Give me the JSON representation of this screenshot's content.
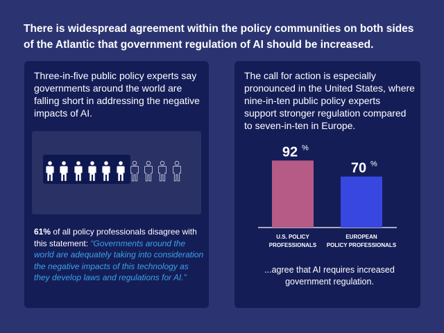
{
  "headline": "There is widespread agreement within the policy communities on both sides of the Atlantic that government regulation of AI should be increased.",
  "left_panel": {
    "intro": "Three-in-five public policy experts say governments around the world are falling short in addressing the negative impacts of AI.",
    "people": {
      "total": 10,
      "highlighted": 6
    },
    "stat_bold": "61%",
    "stat_text": " of all policy professionals disagree with this statement: ",
    "quote": "“Governments around the world are adequately taking into consideration the negative impacts of this technology as they develop laws and regulations for AI.”"
  },
  "right_panel": {
    "intro": "The call for action is especially pronounced in the United States, where nine-in-ten public policy experts support stronger regulation compared to seven-in-ten in Europe.",
    "footnote": "...agree that AI requires increased government regulation."
  },
  "colors": {
    "background": "#2b3471",
    "panel": "#151d57",
    "quote": "#3aa4ea",
    "us_bar": "#b65a86",
    "eu_bar": "#3747e0"
  },
  "chart_data": {
    "type": "bar",
    "categories": [
      [
        "U.S. POLICY",
        "PROFESSIONALS"
      ],
      [
        "EUROPEAN",
        "POLICY PROFESSIONALS"
      ]
    ],
    "values": [
      92,
      70
    ],
    "labels": [
      "92",
      "70"
    ],
    "unit": "%",
    "colors": [
      "#b65a86",
      "#3747e0"
    ],
    "ylim": [
      0,
      100
    ]
  }
}
